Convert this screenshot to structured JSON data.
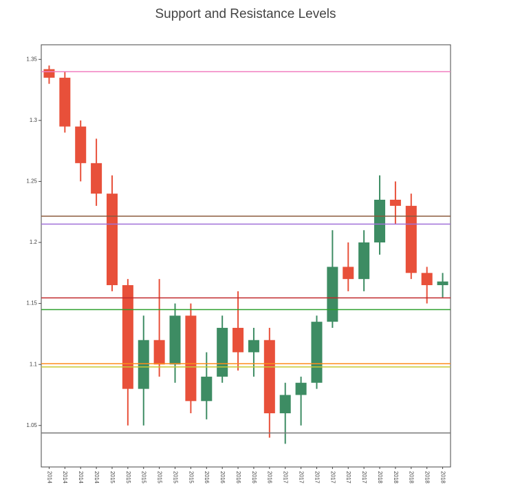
{
  "chart_data": {
    "type": "candlestick",
    "title": "Support and Resistance Levels",
    "categories": [
      "2014",
      "2014",
      "2014",
      "2014",
      "2015",
      "2015",
      "2015",
      "2015",
      "2015",
      "2015",
      "2016",
      "2016",
      "2016",
      "2016",
      "2016",
      "2017",
      "2017",
      "2017",
      "2017",
      "2017",
      "2017",
      "2018",
      "2018",
      "2018",
      "2018",
      "2018"
    ],
    "open": [
      1.342,
      1.335,
      1.295,
      1.265,
      1.24,
      1.165,
      1.08,
      1.12,
      1.1,
      1.14,
      1.07,
      1.09,
      1.13,
      1.11,
      1.12,
      1.06,
      1.075,
      1.085,
      1.135,
      1.18,
      1.17,
      1.2,
      1.235,
      1.23,
      1.175,
      1.165
    ],
    "high": [
      1.345,
      1.34,
      1.3,
      1.285,
      1.255,
      1.17,
      1.14,
      1.17,
      1.15,
      1.15,
      1.11,
      1.14,
      1.16,
      1.13,
      1.13,
      1.085,
      1.09,
      1.14,
      1.21,
      1.2,
      1.21,
      1.255,
      1.25,
      1.24,
      1.18,
      1.175
    ],
    "low": [
      1.33,
      1.29,
      1.25,
      1.23,
      1.16,
      1.05,
      1.05,
      1.09,
      1.085,
      1.06,
      1.055,
      1.085,
      1.095,
      1.09,
      1.04,
      1.035,
      1.05,
      1.08,
      1.13,
      1.16,
      1.16,
      1.19,
      1.215,
      1.17,
      1.15,
      1.155
    ],
    "close": [
      1.335,
      1.295,
      1.265,
      1.24,
      1.165,
      1.08,
      1.12,
      1.1,
      1.14,
      1.07,
      1.09,
      1.13,
      1.11,
      1.12,
      1.06,
      1.075,
      1.085,
      1.135,
      1.18,
      1.17,
      1.2,
      1.235,
      1.23,
      1.175,
      1.165,
      1.168
    ],
    "up_color": "#3d8c63",
    "down_color": "#e8503a",
    "levels": [
      1.34,
      1.2215,
      1.215,
      1.1546,
      1.145,
      1.1007,
      1.098,
      1.0439
    ],
    "level_colors": [
      "#f07fc0",
      "#8b5a3c",
      "#a070d8",
      "#c0282a",
      "#2ca02c",
      "#ff8c1a",
      "#c8c832",
      "#777777"
    ],
    "ylim": [
      1.016,
      1.362
    ],
    "yticks": [
      1.05,
      1.1,
      1.15,
      1.2,
      1.25,
      1.3,
      1.35
    ]
  }
}
